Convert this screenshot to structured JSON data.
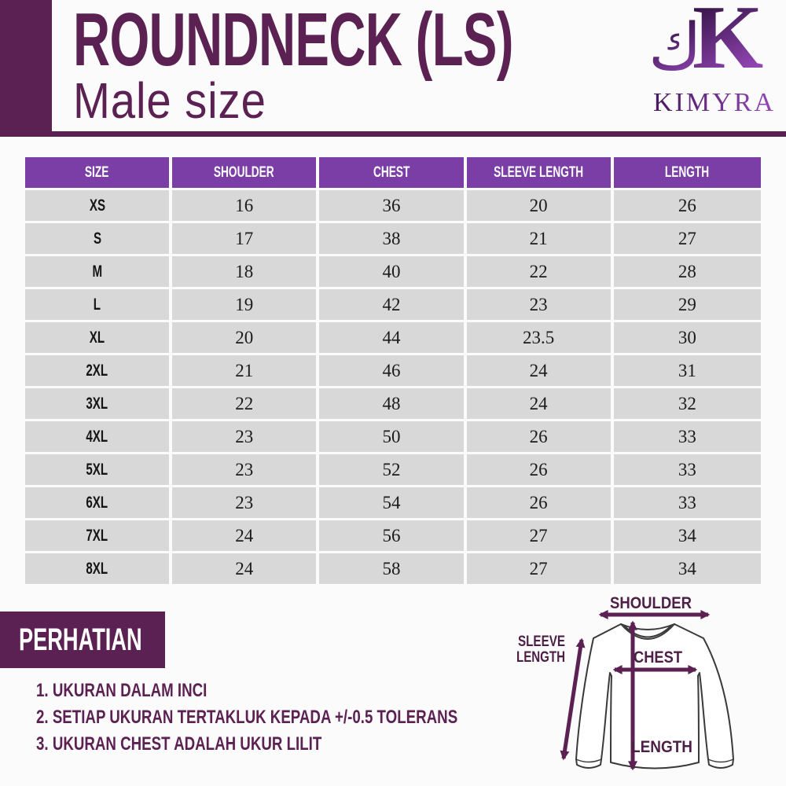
{
  "header": {
    "title": "ROUNDNECK (LS)",
    "subtitle": "Male size"
  },
  "logo": {
    "mark_arabic": "ك",
    "mark_latin": "K",
    "brand": "KIMYRA"
  },
  "colors": {
    "plum_dark": "#5c2153",
    "table_header_purple": "#7b3da6",
    "row_gray": "#d8d8d8",
    "header_text": "#ffffff",
    "diagram_label": "#4d1f47"
  },
  "table": {
    "columns": [
      "SIZE",
      "SHOULDER",
      "CHEST",
      "SLEEVE LENGTH",
      "LENGTH"
    ],
    "rows": [
      [
        "XS",
        "16",
        "36",
        "20",
        "26"
      ],
      [
        "S",
        "17",
        "38",
        "21",
        "27"
      ],
      [
        "M",
        "18",
        "40",
        "22",
        "28"
      ],
      [
        "L",
        "19",
        "42",
        "23",
        "29"
      ],
      [
        "XL",
        "20",
        "44",
        "23.5",
        "30"
      ],
      [
        "2XL",
        "21",
        "46",
        "24",
        "31"
      ],
      [
        "3XL",
        "22",
        "48",
        "24",
        "32"
      ],
      [
        "4XL",
        "23",
        "50",
        "26",
        "33"
      ],
      [
        "5XL",
        "23",
        "52",
        "26",
        "33"
      ],
      [
        "6XL",
        "23",
        "54",
        "26",
        "33"
      ],
      [
        "7XL",
        "24",
        "56",
        "27",
        "34"
      ],
      [
        "8XL",
        "24",
        "58",
        "27",
        "34"
      ]
    ]
  },
  "notes": {
    "heading": "PERHATIAN",
    "items": [
      "1. UKURAN DALAM INCI",
      "2. SETIAP UKURAN TERTAKLUK KEPADA +/-0.5 TOLERANS",
      "3. UKURAN CHEST ADALAH UKUR LILIT"
    ]
  },
  "diagram": {
    "labels": {
      "shoulder": "SHOULDER",
      "chest": "CHEST",
      "length": "LENGTH",
      "sleeve_line1": "SLEEVE",
      "sleeve_line2": "LENGTH"
    }
  }
}
